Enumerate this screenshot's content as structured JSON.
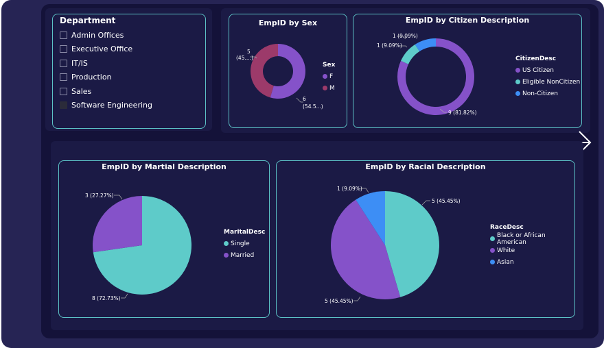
{
  "slicer": {
    "title": "Department",
    "items": [
      {
        "label": "Admin Offices",
        "checked": false
      },
      {
        "label": "Executive Office",
        "checked": false
      },
      {
        "label": "IT/IS",
        "checked": false
      },
      {
        "label": "Production",
        "checked": false
      },
      {
        "label": "Sales",
        "checked": false
      },
      {
        "label": "Software Engineering",
        "checked": true
      }
    ]
  },
  "nav": {
    "next_icon": "arrow-right-icon"
  },
  "colors": {
    "purple": "#8552c9",
    "teal": "#5ecbc9",
    "blue": "#3d8ef5",
    "maroon": "#9c3a6a"
  },
  "charts": {
    "sex": {
      "title": "EmpID by Sex",
      "legend_title": "Sex",
      "labels": {
        "m_top": "5",
        "m_bottom": "(45....)",
        "f_top": "6",
        "f_bottom": "(54.5...)"
      }
    },
    "citizen": {
      "title": "EmpID by Citizen Description",
      "legend_title": "CitizenDesc",
      "labels": {
        "us": "9 (81.82%)",
        "eligible": "1 (9.09%)",
        "non": "1 (9.09%)"
      }
    },
    "marital": {
      "title": "EmpID by Martial Description",
      "legend_title": "MaritalDesc",
      "labels": {
        "married": "3 (27.27%)",
        "single": "8 (72.73%)"
      }
    },
    "racial": {
      "title": "EmpID by Racial Description",
      "legend_title": "RaceDesc",
      "labels": {
        "black": "5 (45.45%)",
        "white": "5 (45.45%)",
        "asian": "1 (9.09%)"
      }
    }
  },
  "chart_data": [
    {
      "type": "pie",
      "title": "EmpID by Sex",
      "legend_title": "Sex",
      "categories": [
        "F",
        "M"
      ],
      "values": [
        6,
        5
      ],
      "percent_labels": [
        "(54.5...)",
        "(45....)"
      ],
      "donut": true,
      "legend_position": "right"
    },
    {
      "type": "pie",
      "title": "EmpID by Citizen Description",
      "legend_title": "CitizenDesc",
      "categories": [
        "US Citizen",
        "Eligible NonCitizen",
        "Non-Citizen"
      ],
      "values": [
        9,
        1,
        1
      ],
      "percents": [
        81.82,
        9.09,
        9.09
      ],
      "donut": true,
      "legend_position": "right"
    },
    {
      "type": "pie",
      "title": "EmpID by Martial Description",
      "legend_title": "MaritalDesc",
      "categories": [
        "Single",
        "Married"
      ],
      "values": [
        8,
        3
      ],
      "percents": [
        72.73,
        27.27
      ],
      "donut": false,
      "legend_position": "right"
    },
    {
      "type": "pie",
      "title": "EmpID by Racial Description",
      "legend_title": "RaceDesc",
      "categories": [
        "Black or African American",
        "White",
        "Asian"
      ],
      "values": [
        5,
        5,
        1
      ],
      "percents": [
        45.45,
        45.45,
        9.09
      ],
      "donut": false,
      "legend_position": "right"
    }
  ]
}
